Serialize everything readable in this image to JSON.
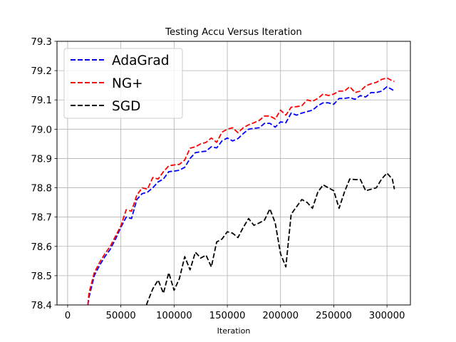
{
  "chart_data": {
    "type": "line",
    "title": "Testing Accu Versus Iteration",
    "xlabel": "Iteration",
    "ylabel": "",
    "xlim": [
      -10000,
      322000
    ],
    "ylim": [
      78.4,
      79.3
    ],
    "xticks": [
      0,
      50000,
      100000,
      150000,
      200000,
      250000,
      300000
    ],
    "yticks": [
      78.4,
      78.5,
      78.6,
      78.7,
      78.8,
      78.9,
      79.0,
      79.1,
      79.2,
      79.3
    ],
    "xtick_labels": [
      "0",
      "50000",
      "100000",
      "150000",
      "200000",
      "250000",
      "300000"
    ],
    "ytick_labels": [
      "78.4",
      "78.5",
      "78.6",
      "78.7",
      "78.8",
      "78.9",
      "79.0",
      "79.1",
      "79.2",
      "79.3"
    ],
    "grid": true,
    "legend_position": "top-left",
    "series": [
      {
        "name": "AdaGrad",
        "color": "#0000ff",
        "x": [
          19000,
          20000,
          25000,
          30000,
          35000,
          40000,
          45000,
          50000,
          55000,
          60000,
          65000,
          70000,
          75000,
          80000,
          85000,
          90000,
          95000,
          100000,
          105000,
          110000,
          115000,
          120000,
          125000,
          130000,
          135000,
          140000,
          145000,
          150000,
          155000,
          160000,
          165000,
          170000,
          175000,
          180000,
          185000,
          190000,
          195000,
          200000,
          205000,
          210000,
          215000,
          220000,
          225000,
          230000,
          235000,
          240000,
          245000,
          250000,
          255000,
          260000,
          265000,
          270000,
          275000,
          280000,
          285000,
          290000,
          295000,
          300000,
          305000,
          307000
        ],
        "y": [
          78.4,
          78.425,
          78.5,
          78.535,
          78.565,
          78.59,
          78.625,
          78.665,
          78.7,
          78.695,
          78.76,
          78.78,
          78.785,
          78.8,
          78.82,
          78.83,
          78.855,
          78.857,
          78.86,
          78.87,
          78.9,
          78.92,
          78.923,
          78.925,
          78.94,
          78.936,
          78.96,
          78.97,
          78.96,
          78.968,
          78.985,
          79.0,
          79.003,
          79.005,
          79.02,
          79.02,
          79.007,
          79.025,
          79.022,
          79.055,
          79.048,
          79.055,
          79.06,
          79.065,
          79.08,
          79.09,
          79.09,
          79.085,
          79.105,
          79.105,
          79.108,
          79.102,
          79.115,
          79.11,
          79.125,
          79.125,
          79.13,
          79.145,
          79.135,
          79.13
        ]
      },
      {
        "name": "NG+",
        "color": "#ff0000",
        "x": [
          19000,
          20000,
          25000,
          30000,
          35000,
          40000,
          45000,
          50000,
          55000,
          60000,
          65000,
          70000,
          75000,
          80000,
          85000,
          90000,
          95000,
          100000,
          105000,
          110000,
          115000,
          120000,
          125000,
          130000,
          135000,
          140000,
          145000,
          150000,
          155000,
          160000,
          165000,
          170000,
          175000,
          180000,
          185000,
          190000,
          195000,
          200000,
          205000,
          210000,
          215000,
          220000,
          225000,
          230000,
          235000,
          240000,
          245000,
          250000,
          255000,
          260000,
          265000,
          270000,
          275000,
          280000,
          285000,
          290000,
          295000,
          300000,
          305000,
          307000
        ],
        "y": [
          78.4,
          78.44,
          78.51,
          78.545,
          78.575,
          78.6,
          78.635,
          78.67,
          78.725,
          78.72,
          78.775,
          78.8,
          78.795,
          78.835,
          78.83,
          78.855,
          78.875,
          78.878,
          78.88,
          78.895,
          78.935,
          78.94,
          78.95,
          78.955,
          78.97,
          78.955,
          78.99,
          79.0,
          79.005,
          78.988,
          79.005,
          79.015,
          79.022,
          79.03,
          79.045,
          79.045,
          79.035,
          79.065,
          79.048,
          79.075,
          79.077,
          79.08,
          79.1,
          79.095,
          79.105,
          79.12,
          79.115,
          79.12,
          79.13,
          79.13,
          79.145,
          79.125,
          79.13,
          79.148,
          79.155,
          79.16,
          79.17,
          79.175,
          79.165,
          79.163
        ]
      },
      {
        "name": "SGD",
        "color": "#000000",
        "x": [
          74000,
          75000,
          80000,
          85000,
          90000,
          95000,
          100000,
          105000,
          110000,
          115000,
          120000,
          125000,
          130000,
          135000,
          140000,
          145000,
          150000,
          155000,
          160000,
          165000,
          170000,
          175000,
          180000,
          185000,
          190000,
          195000,
          200000,
          205000,
          210000,
          215000,
          220000,
          225000,
          230000,
          235000,
          240000,
          245000,
          250000,
          255000,
          260000,
          265000,
          270000,
          275000,
          280000,
          285000,
          290000,
          295000,
          300000,
          305000,
          307000
        ],
        "y": [
          78.4,
          78.41,
          78.455,
          78.485,
          78.44,
          78.51,
          78.45,
          78.49,
          78.565,
          78.52,
          78.58,
          78.56,
          78.57,
          78.53,
          78.615,
          78.625,
          78.65,
          78.645,
          78.63,
          78.665,
          78.695,
          78.672,
          78.68,
          78.69,
          78.728,
          78.68,
          78.575,
          78.53,
          78.71,
          78.735,
          78.76,
          78.75,
          78.73,
          78.785,
          78.81,
          78.8,
          78.79,
          78.73,
          78.785,
          78.83,
          78.828,
          78.828,
          78.79,
          78.795,
          78.8,
          78.83,
          78.85,
          78.83,
          78.795
        ]
      }
    ]
  }
}
